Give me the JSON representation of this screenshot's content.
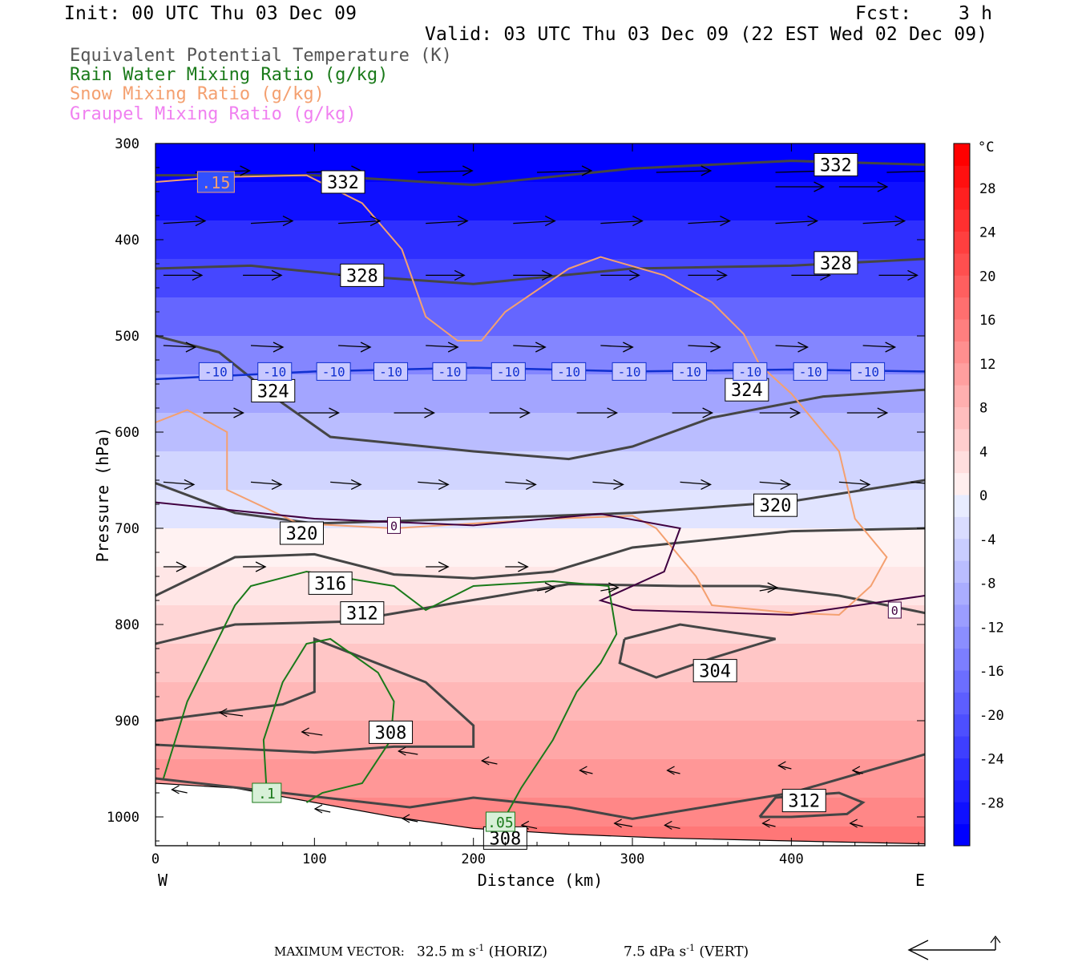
{
  "header": {
    "init": "Init: 00 UTC Thu 03 Dec 09",
    "fcst_label": "Fcst:",
    "fcst_value": "3 h",
    "valid": "Valid: 03 UTC Thu 03 Dec 09 (22 EST Wed 02 Dec 09)"
  },
  "legend": [
    {
      "label": "Equivalent Potential Temperature (K)",
      "color": "#555555"
    },
    {
      "label": "Rain Water Mixing Ratio (g/kg)",
      "color": "#1a7a1a"
    },
    {
      "label": "Snow Mixing Ratio (g/kg)",
      "color": "#f4a070"
    },
    {
      "label": "Graupel Mixing Ratio (g/kg)",
      "color": "#f080f0"
    }
  ],
  "footer": {
    "max_vector": "MAXIMUM VECTOR:",
    "horiz_value": "32.5 m s",
    "horiz_sup": "-1",
    "horiz_unit": "(HORIZ)",
    "vert_value": "7.5 dPa s",
    "vert_sup": "-1",
    "vert_unit": "(VERT)"
  },
  "chart_data": {
    "type": "heatmap",
    "xlabel": "Distance (km)",
    "ylabel": "Pressure (hPa)",
    "xlim": [
      0,
      484
    ],
    "ylim": [
      1030,
      300
    ],
    "x_ticks": [
      0,
      100,
      200,
      300,
      400
    ],
    "y_ticks": [
      300,
      400,
      500,
      600,
      700,
      800,
      900,
      1000
    ],
    "x_left_label": "W",
    "x_right_label": "E",
    "colorbar": {
      "unit": "°C",
      "tick_values": [
        28,
        24,
        20,
        16,
        12,
        8,
        4,
        0,
        -4,
        -8,
        -12,
        -16,
        -20,
        -24,
        -28
      ],
      "levels": [
        -32,
        -30,
        -28,
        -26,
        -24,
        -22,
        -20,
        -18,
        -16,
        -14,
        -12,
        -10,
        -8,
        -6,
        -4,
        -2,
        0,
        2,
        4,
        6,
        8,
        10,
        12,
        14,
        16,
        18,
        20,
        22,
        24,
        26,
        28,
        30,
        32
      ]
    },
    "temperature_field": [
      {
        "p": 300,
        "t": -31
      },
      {
        "p": 340,
        "t": -29
      },
      {
        "p": 380,
        "t": -25
      },
      {
        "p": 420,
        "t": -22
      },
      {
        "p": 460,
        "t": -18
      },
      {
        "p": 500,
        "t": -14
      },
      {
        "p": 540,
        "t": -10
      },
      {
        "p": 580,
        "t": -7
      },
      {
        "p": 620,
        "t": -4
      },
      {
        "p": 660,
        "t": -2
      },
      {
        "p": 700,
        "t": 0.5
      },
      {
        "p": 740,
        "t": 2
      },
      {
        "p": 780,
        "t": 4
      },
      {
        "p": 820,
        "t": 6
      },
      {
        "p": 860,
        "t": 8
      },
      {
        "p": 900,
        "t": 10
      },
      {
        "p": 940,
        "t": 12
      },
      {
        "p": 980,
        "t": 14
      },
      {
        "p": 1010,
        "t": 16
      }
    ],
    "theta_e_contours": [
      {
        "label": "332",
        "points": [
          [
            0,
            333
          ],
          [
            100,
            333
          ],
          [
            200,
            343
          ],
          [
            300,
            326
          ],
          [
            400,
            318
          ],
          [
            484,
            322
          ]
        ],
        "label_at": [
          [
            118,
            340
          ],
          [
            428,
            322
          ]
        ]
      },
      {
        "label": "328",
        "points": [
          [
            0,
            430
          ],
          [
            60,
            427
          ],
          [
            120,
            437
          ],
          [
            200,
            446
          ],
          [
            300,
            430
          ],
          [
            400,
            427
          ],
          [
            484,
            420
          ]
        ],
        "label_at": [
          [
            130,
            437
          ],
          [
            428,
            424
          ]
        ]
      },
      {
        "label": "324",
        "points": [
          [
            0,
            500
          ],
          [
            40,
            517
          ],
          [
            80,
            570
          ],
          [
            110,
            605
          ],
          [
            200,
            620
          ],
          [
            260,
            628
          ],
          [
            300,
            615
          ],
          [
            350,
            585
          ],
          [
            420,
            563
          ],
          [
            484,
            556
          ]
        ],
        "label_at": [
          [
            74,
            557
          ],
          [
            372,
            556
          ]
        ]
      },
      {
        "label": "320",
        "points": [
          [
            0,
            653
          ],
          [
            50,
            684
          ],
          [
            100,
            695
          ],
          [
            200,
            690
          ],
          [
            300,
            684
          ],
          [
            400,
            672
          ],
          [
            484,
            650
          ]
        ],
        "label_at": [
          [
            92,
            705
          ],
          [
            390,
            676
          ]
        ]
      },
      {
        "label": "316",
        "points": [
          [
            0,
            770
          ],
          [
            50,
            730
          ],
          [
            100,
            727
          ],
          [
            150,
            748
          ],
          [
            200,
            752
          ],
          [
            250,
            745
          ],
          [
            300,
            720
          ],
          [
            400,
            703
          ],
          [
            484,
            700
          ]
        ],
        "label_at": [
          [
            110,
            757
          ]
        ]
      },
      {
        "label": "312",
        "points": [
          [
            0,
            820
          ],
          [
            50,
            800
          ],
          [
            120,
            797
          ],
          [
            180,
            780
          ],
          [
            260,
            758
          ],
          [
            330,
            760
          ],
          [
            380,
            760
          ],
          [
            430,
            770
          ],
          [
            484,
            788
          ]
        ],
        "label_at": [
          [
            130,
            788
          ]
        ]
      },
      {
        "label": "308",
        "points": [
          [
            0,
            900
          ],
          [
            80,
            883
          ],
          [
            100,
            870
          ],
          [
            100,
            815
          ],
          [
            170,
            860
          ],
          [
            200,
            905
          ],
          [
            200,
            927
          ],
          [
            150,
            927
          ],
          [
            100,
            933
          ],
          [
            0,
            925
          ]
        ],
        "label_at": [
          [
            148,
            912
          ]
        ]
      },
      {
        "label": "304",
        "points": [
          [
            295,
            815
          ],
          [
            330,
            800
          ],
          [
            390,
            815
          ],
          [
            350,
            835
          ],
          [
            315,
            855
          ],
          [
            292,
            840
          ],
          [
            295,
            815
          ]
        ],
        "label_at": [
          [
            352,
            848
          ]
        ]
      },
      {
        "label": "312",
        "points": [
          [
            380,
            1000
          ],
          [
            390,
            980
          ],
          [
            430,
            975
          ],
          [
            445,
            985
          ],
          [
            435,
            997
          ],
          [
            400,
            1000
          ],
          [
            380,
            1000
          ]
        ],
        "label_at": [
          [
            408,
            983
          ]
        ]
      },
      {
        "label": "308",
        "points": [
          [
            0,
            960
          ],
          [
            80,
            975
          ],
          [
            160,
            990
          ],
          [
            200,
            980
          ],
          [
            260,
            990
          ],
          [
            300,
            1002
          ],
          [
            400,
            975
          ],
          [
            484,
            935
          ]
        ],
        "label_at": [
          [
            220,
            1022
          ]
        ]
      }
    ],
    "isotherm_labels": [
      "-10",
      "-10",
      "-10",
      "-10",
      "-10",
      "-10",
      "-10",
      "-10",
      "-10",
      "-10",
      "-10",
      "-10"
    ],
    "isotherm_zero_label": "0",
    "rain_labels": [
      ".1",
      ".05"
    ],
    "snow_label": ".15",
    "horizontal_wind_unit": "m/s",
    "vertical_wind_unit": "dPa/s"
  }
}
